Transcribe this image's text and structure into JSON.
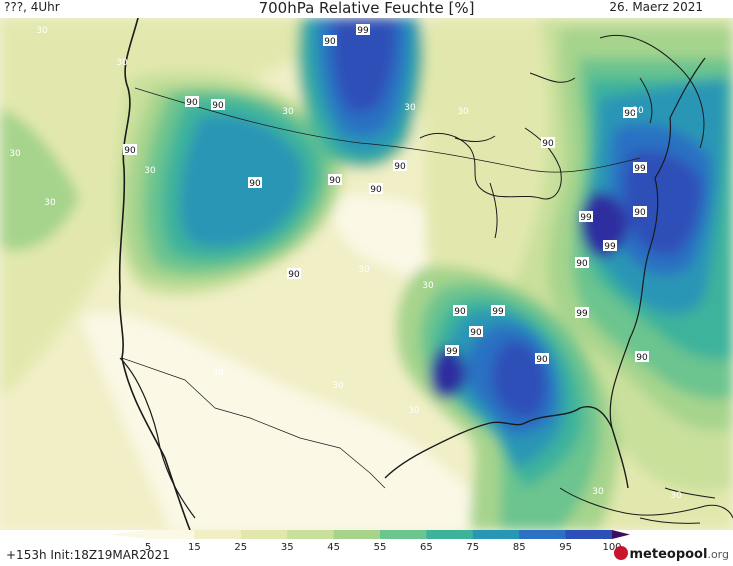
{
  "header": {
    "left_label": "???, 4Uhr",
    "title": "700hPa Relative Feuchte [%]",
    "date": "26. Maerz 2021"
  },
  "footer": {
    "run_info": "+153h  Init:18Z19MAR2021",
    "logo_text": "meteopool",
    "logo_suffix": ".org"
  },
  "colors": {
    "ocean": "#f4f2d8",
    "scale": [
      "#ffffff",
      "#fbf8e6",
      "#f1efc6",
      "#e2e8ad",
      "#c9e09b",
      "#a6d48d",
      "#6cc48e",
      "#3db39b",
      "#2a96b5",
      "#2c71c3",
      "#2d4fb8",
      "#2d2fa0",
      "#291a7a",
      "#3f0d5f"
    ]
  },
  "legend": {
    "ticks": [
      "5",
      "15",
      "25",
      "35",
      "45",
      "55",
      "65",
      "75",
      "85",
      "95",
      "100"
    ]
  },
  "map_labels": [
    {
      "text": "30"
    },
    {
      "text": "30"
    },
    {
      "text": "30"
    },
    {
      "text": "90"
    },
    {
      "text": "99"
    },
    {
      "text": "90"
    },
    {
      "text": "90"
    },
    {
      "text": "30"
    },
    {
      "text": "30"
    },
    {
      "text": "30"
    },
    {
      "text": "90"
    },
    {
      "text": "90"
    },
    {
      "text": "30"
    },
    {
      "text": "90"
    },
    {
      "text": "30"
    },
    {
      "text": "90"
    },
    {
      "text": "90"
    },
    {
      "text": "90"
    },
    {
      "text": "30"
    },
    {
      "text": "90"
    },
    {
      "text": "99"
    },
    {
      "text": "99"
    },
    {
      "text": "90"
    },
    {
      "text": "99"
    },
    {
      "text": "90"
    },
    {
      "text": "30"
    },
    {
      "text": "90"
    },
    {
      "text": "99"
    },
    {
      "text": "90"
    },
    {
      "text": "99"
    },
    {
      "text": "90"
    },
    {
      "text": "99"
    },
    {
      "text": "90"
    },
    {
      "text": "30"
    },
    {
      "text": "30"
    },
    {
      "text": "30"
    },
    {
      "text": "30"
    },
    {
      "text": "30"
    },
    {
      "text": "30"
    },
    {
      "text": "90"
    }
  ]
}
